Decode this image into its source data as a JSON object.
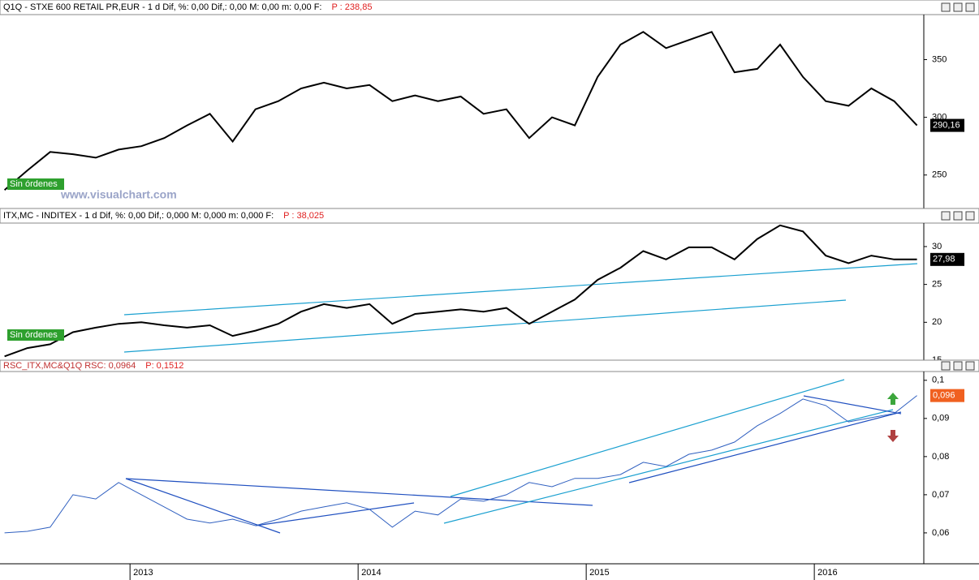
{
  "watermark": "www.visualchart.com",
  "chart_data": [
    {
      "type": "line",
      "header": "Q1Q - STXE 600 RETAIL PR,EUR -  1 d Dif, %: 0,00 Dif,: 0,00 M: 0,00 m: 0,00 F:",
      "price_label": "P : 238,85",
      "badge": "Sin órdenes",
      "last_label": "290,16",
      "xlim": [
        2012.43,
        2016.48
      ],
      "ylim": [
        221,
        389
      ],
      "yticks": [
        350,
        300,
        250
      ],
      "series": [
        {
          "color": "#000000",
          "x": [
            2012.45,
            2012.55,
            2012.65,
            2012.75,
            2012.85,
            2012.95,
            2013.05,
            2013.15,
            2013.25,
            2013.35,
            2013.45,
            2013.55,
            2013.65,
            2013.75,
            2013.85,
            2013.95,
            2014.05,
            2014.15,
            2014.25,
            2014.35,
            2014.45,
            2014.55,
            2014.65,
            2014.75,
            2014.85,
            2014.95,
            2015.05,
            2015.15,
            2015.25,
            2015.35,
            2015.45,
            2015.55,
            2015.65,
            2015.75,
            2015.85,
            2015.95,
            2016.05,
            2016.15,
            2016.25,
            2016.35,
            2016.45
          ],
          "values": [
            237,
            254,
            270,
            268,
            265,
            272,
            275,
            282,
            293,
            303,
            279,
            307,
            314,
            325,
            330,
            325,
            328,
            314,
            319,
            314,
            318,
            303,
            307,
            282,
            300,
            293,
            335,
            363,
            374,
            360,
            367,
            374,
            339,
            342,
            363,
            335,
            314,
            310,
            325,
            314,
            293
          ]
        }
      ]
    },
    {
      "type": "line",
      "header": "ITX,MC - INDITEX -  1 d Dif, %: 0,00 Dif,: 0,000 M: 0,000 m: 0,000 F:",
      "price_label": "P : 38,025",
      "badge": "Sin órdenes",
      "last_label": "27,98",
      "xlim": [
        2012.43,
        2016.48
      ],
      "ylim": [
        15,
        33.1
      ],
      "yticks": [
        30,
        25,
        20,
        15
      ],
      "series": [
        {
          "color": "#000000",
          "x": [
            2012.45,
            2012.55,
            2012.65,
            2012.75,
            2012.85,
            2012.95,
            2013.05,
            2013.15,
            2013.25,
            2013.35,
            2013.45,
            2013.55,
            2013.65,
            2013.75,
            2013.85,
            2013.95,
            2014.05,
            2014.15,
            2014.25,
            2014.35,
            2014.45,
            2014.55,
            2014.65,
            2014.75,
            2014.85,
            2014.95,
            2015.05,
            2015.15,
            2015.25,
            2015.35,
            2015.45,
            2015.55,
            2015.65,
            2015.75,
            2015.85,
            2015.95,
            2016.05,
            2016.15,
            2016.25,
            2016.35,
            2016.45
          ],
          "values": [
            15.5,
            16.6,
            17.1,
            18.7,
            19.3,
            19.8,
            20.0,
            19.6,
            19.3,
            19.6,
            18.2,
            18.9,
            19.8,
            21.4,
            22.4,
            21.9,
            22.4,
            19.8,
            21.1,
            21.4,
            21.7,
            21.4,
            21.9,
            19.8,
            21.4,
            23.0,
            25.6,
            27.2,
            29.4,
            28.3,
            29.9,
            29.9,
            28.3,
            31.0,
            32.8,
            32.0,
            28.8,
            27.8,
            28.8,
            28.3,
            28.3
          ]
        }
      ]
    },
    {
      "type": "line",
      "header": "RSC_ITX,MC&Q1Q RSC: 0,0964",
      "price_label": "P: 0,1512",
      "last_label": "0,096",
      "xlim": [
        2012.43,
        2016.48
      ],
      "xticks": [
        2013,
        2014,
        2015,
        2016
      ],
      "ylim": [
        0.0519,
        0.1023
      ],
      "yticks": [
        {
          "value": 0.1,
          "label": "0,1"
        },
        {
          "value": 0.09,
          "label": "0,09"
        },
        {
          "value": 0.08,
          "label": "0,08"
        },
        {
          "value": 0.07,
          "label": "0,07"
        },
        {
          "value": 0.06,
          "label": "0,06"
        }
      ],
      "series": [
        {
          "color": "#3060c0",
          "x": [
            2012.45,
            2012.55,
            2012.65,
            2012.75,
            2012.85,
            2012.95,
            2013.05,
            2013.15,
            2013.25,
            2013.35,
            2013.45,
            2013.55,
            2013.65,
            2013.75,
            2013.85,
            2013.95,
            2014.05,
            2014.15,
            2014.25,
            2014.35,
            2014.45,
            2014.55,
            2014.65,
            2014.75,
            2014.85,
            2014.95,
            2015.05,
            2015.15,
            2015.25,
            2015.35,
            2015.45,
            2015.55,
            2015.65,
            2015.75,
            2015.85,
            2015.95,
            2016.05,
            2016.15,
            2016.25,
            2016.35,
            2016.45
          ],
          "values": [
            0.06,
            0.0604,
            0.0615,
            0.07,
            0.0689,
            0.0732,
            0.07,
            0.0668,
            0.0636,
            0.0626,
            0.0636,
            0.0619,
            0.0636,
            0.0657,
            0.0668,
            0.0679,
            0.0662,
            0.0615,
            0.0657,
            0.0647,
            0.0689,
            0.0683,
            0.07,
            0.0732,
            0.0721,
            0.0743,
            0.0743,
            0.0753,
            0.0785,
            0.0774,
            0.0806,
            0.0817,
            0.0838,
            0.0881,
            0.0913,
            0.0951,
            0.0934,
            0.0891,
            0.0902,
            0.0913,
            0.096
          ]
        }
      ]
    }
  ]
}
